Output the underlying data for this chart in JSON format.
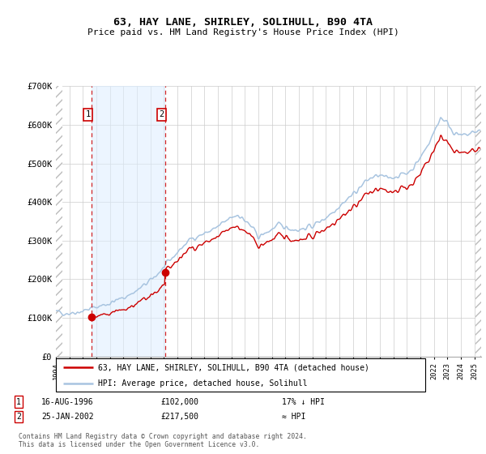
{
  "title": "63, HAY LANE, SHIRLEY, SOLIHULL, B90 4TA",
  "subtitle": "Price paid vs. HM Land Registry's House Price Index (HPI)",
  "sale1_label": "16-AUG-1996",
  "sale1_price": 102000,
  "sale1_hpi_text": "17% ↓ HPI",
  "sale1_x": 1996.62,
  "sale2_label": "25-JAN-2002",
  "sale2_price": 217500,
  "sale2_hpi_text": "≈ HPI",
  "sale2_x": 2002.07,
  "hpi_line_color": "#a8c4e0",
  "price_line_color": "#cc0000",
  "dot_color": "#cc0000",
  "shade_color": "#ddeeff",
  "grid_color": "#cccccc",
  "ylim": [
    0,
    700000
  ],
  "xlim_start": 1994.0,
  "xlim_end": 2025.5,
  "ytick_labels": [
    "£0",
    "£100K",
    "£200K",
    "£300K",
    "£400K",
    "£500K",
    "£600K",
    "£700K"
  ],
  "ytick_values": [
    0,
    100000,
    200000,
    300000,
    400000,
    500000,
    600000,
    700000
  ],
  "legend_line1": "63, HAY LANE, SHIRLEY, SOLIHULL, B90 4TA (detached house)",
  "legend_line2": "HPI: Average price, detached house, Solihull",
  "footer": "Contains HM Land Registry data © Crown copyright and database right 2024.\nThis data is licensed under the Open Government Licence v3.0.",
  "bg_color": "#ffffff"
}
